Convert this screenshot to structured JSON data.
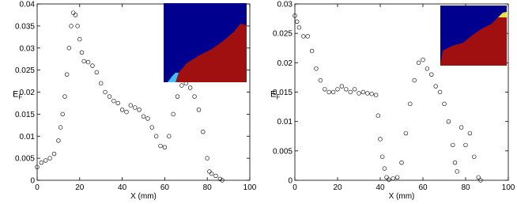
{
  "chart_data": [
    {
      "type": "scatter",
      "xlabel": "X (mm)",
      "ylabel": {
        "text": "E",
        "subscript": "F"
      },
      "xlim": [
        0,
        100
      ],
      "xticks": [
        0,
        20,
        40,
        60,
        80,
        100
      ],
      "ylim": [
        0,
        0.04
      ],
      "yticks": [
        0,
        0.005,
        0.01,
        0.015,
        0.02,
        0.025,
        0.03,
        0.035,
        0.04
      ],
      "color": "#000000",
      "x": [
        0,
        2,
        4,
        6,
        8,
        10,
        11,
        12,
        13,
        14,
        15,
        16,
        17,
        18,
        19,
        20,
        21,
        22,
        24,
        26,
        28,
        30,
        32,
        34,
        36,
        38,
        40,
        42,
        44,
        46,
        48,
        50,
        52,
        54,
        56,
        58,
        60,
        62,
        64,
        66,
        68,
        70,
        72,
        74,
        76,
        78,
        80,
        81,
        82,
        84,
        86,
        87
      ],
      "values": [
        0.003,
        0.004,
        0.0045,
        0.005,
        0.006,
        0.009,
        0.012,
        0.015,
        0.019,
        0.024,
        0.03,
        0.035,
        0.038,
        0.0375,
        0.035,
        0.032,
        0.029,
        0.027,
        0.0268,
        0.026,
        0.0245,
        0.022,
        0.02,
        0.019,
        0.018,
        0.0175,
        0.016,
        0.0155,
        0.017,
        0.0165,
        0.016,
        0.0145,
        0.014,
        0.012,
        0.01,
        0.0078,
        0.0075,
        0.01,
        0.015,
        0.019,
        0.0215,
        0.022,
        0.021,
        0.019,
        0.016,
        0.011,
        0.005,
        0.002,
        0.0015,
        0.001,
        0.0003,
        0
      ]
    },
    {
      "type": "scatter",
      "xlabel": "X (mm)",
      "ylabel": {
        "text": "E",
        "subscript": "F"
      },
      "xlim": [
        0,
        100
      ],
      "xticks": [
        0,
        20,
        40,
        60,
        80,
        100
      ],
      "ylim": [
        0,
        0.03
      ],
      "yticks": [
        0,
        0.005,
        0.01,
        0.015,
        0.02,
        0.025,
        0.03
      ],
      "color": "#000000",
      "x": [
        0,
        1,
        2,
        4,
        6,
        8,
        10,
        12,
        14,
        16,
        18,
        20,
        22,
        24,
        26,
        28,
        30,
        32,
        34,
        36,
        38,
        39,
        40,
        41,
        42,
        43,
        44,
        46,
        48,
        50,
        52,
        54,
        56,
        58,
        60,
        62,
        64,
        66,
        68,
        70,
        72,
        74,
        75,
        76,
        78,
        80,
        82,
        84,
        86,
        87
      ],
      "values": [
        0.028,
        0.027,
        0.026,
        0.0245,
        0.0245,
        0.022,
        0.019,
        0.017,
        0.0155,
        0.015,
        0.015,
        0.0155,
        0.016,
        0.0155,
        0.015,
        0.0155,
        0.0148,
        0.015,
        0.0148,
        0.0147,
        0.0145,
        0.011,
        0.007,
        0.004,
        0.002,
        0.0005,
        0.0001,
        0.0003,
        0.0005,
        0.003,
        0.008,
        0.013,
        0.017,
        0.02,
        0.0205,
        0.019,
        0.018,
        0.016,
        0.015,
        0.013,
        0.01,
        0.006,
        0.003,
        0.0015,
        0.009,
        0.006,
        0.008,
        0.004,
        0.0005,
        0
      ]
    }
  ]
}
